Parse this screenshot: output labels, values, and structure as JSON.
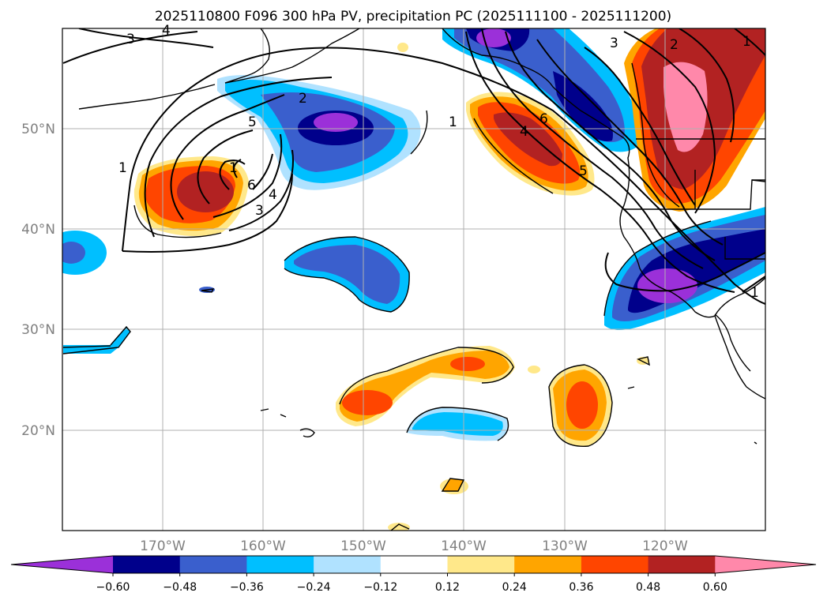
{
  "figure": {
    "title": "2025110800 F096 300 hPa PV, precipitation PC (2025111100 - 2025111200)"
  },
  "map": {
    "lon_labels": [
      "170°W",
      "160°W",
      "150°W",
      "140°W",
      "130°W",
      "120°W"
    ],
    "lat_labels": [
      "50°N",
      "40°N",
      "30°N",
      "20°N"
    ],
    "contour_labels": [
      "3",
      "4",
      "2",
      "5",
      "1",
      "6",
      "4",
      "3",
      "1",
      "3",
      "2",
      "6",
      "4",
      "5",
      "1",
      "1",
      "1"
    ],
    "colors": {
      "purple": "#9b30d9",
      "navy": "#00008b",
      "royal_blue": "#3a5fcd",
      "deep_sky": "#00bfff",
      "light_blue": "#b0e2ff",
      "white": "#ffffff",
      "khaki": "#ffe88a",
      "orange": "#ffa500",
      "orange_red": "#ff4500",
      "firebrick": "#b22222",
      "pink": "#ff88aa"
    }
  },
  "colorbar": {
    "tick_labels": [
      "−0.60",
      "−0.48",
      "−0.36",
      "−0.24",
      "−0.12",
      "0.12",
      "0.24",
      "0.36",
      "0.48",
      "0.60"
    ],
    "colors": [
      "#9b30d9",
      "#00008b",
      "#3a5fcd",
      "#00bfff",
      "#b0e2ff",
      "#ffffff",
      "#ffe88a",
      "#ffa500",
      "#ff4500",
      "#b22222",
      "#ff88aa"
    ]
  }
}
